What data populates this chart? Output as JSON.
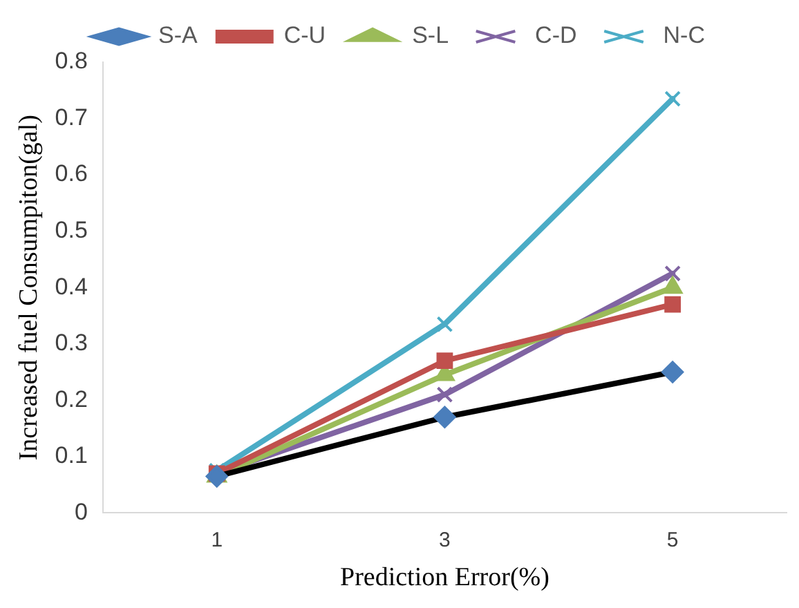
{
  "chart_data": {
    "type": "line",
    "xlabel": "Prediction Error(%)",
    "ylabel": "Increased fuel Consumpiton(gal)",
    "categories": [
      "1",
      "3",
      "5"
    ],
    "series": [
      {
        "name": "S-A",
        "color": "#000000",
        "colors": [
          "#4a7ebb",
          "#4a7ebb",
          "#4a7ebb"
        ],
        "marker": "diamond",
        "values": [
          0.065,
          0.17,
          0.25
        ]
      },
      {
        "name": "C-U",
        "color": "#c0504d",
        "marker": "square",
        "values": [
          0.07,
          0.27,
          0.37
        ]
      },
      {
        "name": "S-L",
        "color": "#9bbb59",
        "marker": "triangle",
        "values": [
          0.065,
          0.245,
          0.4
        ]
      },
      {
        "name": "C-D",
        "color": "#8064a2",
        "marker": "cross",
        "values": [
          0.07,
          0.21,
          0.425
        ]
      },
      {
        "name": "N-C",
        "color": "#4bacc6",
        "marker": "cross",
        "values": [
          0.075,
          0.335,
          0.735
        ]
      }
    ],
    "ylim": [
      0,
      0.8
    ],
    "yticks": [
      0,
      0.1,
      0.2,
      0.3,
      0.4,
      0.5,
      0.6,
      0.7,
      0.8
    ],
    "grid": false,
    "legend": "top"
  }
}
